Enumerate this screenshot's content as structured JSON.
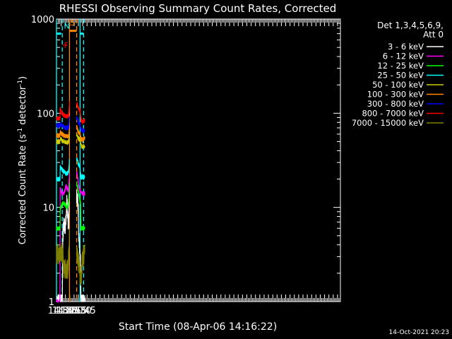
{
  "chart_data": {
    "type": "line",
    "title": "RHESSI Observing Summary Count Rates, Corrected",
    "xlabel": "Start Time (08-Apr-06 14:16:22)",
    "ylabel": "Corrected Count Rate (s",
    "ylabel_sup": "-1",
    "ylabel_tail": " detector",
    "ylabel_tail_sup": "-1",
    "ylabel_close": ")",
    "yscale": "log",
    "ylim": [
      1,
      1000
    ],
    "xlim_min": [
      14,
      1000
    ],
    "x_ticks": [
      {
        "min": 30,
        "label": "14:30"
      },
      {
        "min": 45,
        "label": "14:45"
      },
      {
        "min": 60,
        "label": "15:00"
      },
      {
        "min": 75,
        "label": "15:15"
      },
      {
        "min": 90,
        "label": "15:30"
      },
      {
        "min": 105,
        "label": "15:45"
      }
    ],
    "y_ticks": [
      {
        "value": 1,
        "label": "1"
      },
      {
        "value": 10,
        "label": "10"
      },
      {
        "value": 100,
        "label": "100"
      },
      {
        "value": 1000,
        "label": "1000"
      }
    ],
    "legend_header": [
      "Det 1,3,4,5,6,9,",
      "Att 0"
    ],
    "legend_position": "right",
    "timestamp": "14-Oct-2021 20:23",
    "gaps": [
      [
        59,
        84
      ]
    ],
    "series": [
      {
        "name": "3 - 6 keV",
        "color": "#ffffff",
        "points": [
          [
            14,
            1
          ],
          [
            34,
            1
          ],
          [
            36,
            5
          ],
          [
            40,
            7
          ],
          [
            44,
            6
          ],
          [
            48,
            9
          ],
          [
            50,
            12
          ],
          [
            52,
            10
          ],
          [
            54,
            7
          ],
          [
            56,
            6
          ],
          [
            58,
            12
          ],
          [
            59,
            13
          ],
          [
            84,
            13
          ],
          [
            87,
            12
          ],
          [
            90,
            9
          ],
          [
            91,
            5
          ],
          [
            95,
            3.5
          ],
          [
            98,
            2.5
          ],
          [
            99,
            1
          ],
          [
            105,
            1
          ],
          [
            112,
            1
          ]
        ]
      },
      {
        "name": "6 - 12 keV",
        "color": "#ff00ff",
        "points": [
          [
            14,
            1
          ],
          [
            26,
            1
          ],
          [
            27,
            16
          ],
          [
            30,
            15
          ],
          [
            34,
            14
          ],
          [
            38,
            14
          ],
          [
            42,
            15
          ],
          [
            48,
            17
          ],
          [
            54,
            15
          ],
          [
            56,
            16
          ],
          [
            58,
            20
          ],
          [
            59,
            24
          ],
          [
            84,
            24
          ],
          [
            88,
            20
          ],
          [
            91,
            17
          ],
          [
            95,
            15
          ],
          [
            99,
            15
          ],
          [
            104,
            14
          ],
          [
            112,
            14
          ]
        ]
      },
      {
        "name": "12 - 25 keV",
        "color": "#00ff00",
        "points": [
          [
            14,
            6
          ],
          [
            26,
            6
          ],
          [
            27,
            10
          ],
          [
            30,
            10
          ],
          [
            34,
            11
          ],
          [
            40,
            11
          ],
          [
            46,
            10.5
          ],
          [
            52,
            10
          ],
          [
            56,
            11
          ],
          [
            58,
            14
          ],
          [
            59,
            18
          ],
          [
            84,
            18
          ],
          [
            88,
            16
          ],
          [
            91,
            14
          ],
          [
            95,
            12
          ],
          [
            98,
            11
          ],
          [
            99,
            6
          ],
          [
            112,
            6
          ]
        ]
      },
      {
        "name": "25 - 50 keV",
        "color": "#00ffff",
        "points": [
          [
            14,
            20
          ],
          [
            26,
            20
          ],
          [
            27,
            27
          ],
          [
            30,
            26
          ],
          [
            34,
            25
          ],
          [
            40,
            24
          ],
          [
            46,
            23
          ],
          [
            52,
            23
          ],
          [
            56,
            24
          ],
          [
            58,
            28
          ],
          [
            59,
            33
          ],
          [
            84,
            33
          ],
          [
            88,
            30
          ],
          [
            92,
            28
          ],
          [
            96,
            27
          ],
          [
            99,
            21
          ],
          [
            104,
            21
          ],
          [
            112,
            21
          ]
        ]
      },
      {
        "name": "50 - 100 keV",
        "color": "#cccc00",
        "points": [
          [
            14,
            50
          ],
          [
            26,
            50
          ],
          [
            27,
            55
          ],
          [
            30,
            53
          ],
          [
            34,
            51
          ],
          [
            40,
            50
          ],
          [
            46,
            49
          ],
          [
            52,
            49
          ],
          [
            56,
            50
          ],
          [
            58,
            54
          ],
          [
            59,
            60
          ],
          [
            84,
            60
          ],
          [
            88,
            56
          ],
          [
            92,
            53
          ],
          [
            96,
            52
          ],
          [
            99,
            46
          ],
          [
            104,
            44
          ],
          [
            112,
            45
          ]
        ]
      },
      {
        "name": "100 - 300 keV",
        "color": "#ff8800",
        "points": [
          [
            14,
            58
          ],
          [
            26,
            58
          ],
          [
            27,
            63
          ],
          [
            30,
            61
          ],
          [
            34,
            60
          ],
          [
            40,
            58
          ],
          [
            46,
            57
          ],
          [
            52,
            57
          ],
          [
            56,
            58
          ],
          [
            58,
            64
          ],
          [
            59,
            74
          ],
          [
            84,
            72
          ],
          [
            88,
            66
          ],
          [
            92,
            62
          ],
          [
            96,
            60
          ],
          [
            99,
            54
          ],
          [
            104,
            52
          ],
          [
            112,
            55
          ]
        ]
      },
      {
        "name": "300 - 800 keV",
        "color": "#0000ff",
        "points": [
          [
            14,
            74
          ],
          [
            26,
            74
          ],
          [
            27,
            78
          ],
          [
            30,
            76
          ],
          [
            34,
            74
          ],
          [
            40,
            71
          ],
          [
            46,
            70
          ],
          [
            52,
            70
          ],
          [
            56,
            72
          ],
          [
            58,
            80
          ],
          [
            59,
            92
          ],
          [
            84,
            90
          ],
          [
            88,
            84
          ],
          [
            92,
            78
          ],
          [
            96,
            76
          ],
          [
            99,
            68
          ],
          [
            104,
            64
          ],
          [
            112,
            66
          ]
        ]
      },
      {
        "name": "800 - 7000 keV",
        "color": "#ff0000",
        "points": [
          [
            14,
            88
          ],
          [
            26,
            88
          ],
          [
            27,
            110
          ],
          [
            30,
            106
          ],
          [
            34,
            100
          ],
          [
            40,
            95
          ],
          [
            46,
            93
          ],
          [
            52,
            92
          ],
          [
            56,
            95
          ],
          [
            58,
            110
          ],
          [
            59,
            130
          ],
          [
            84,
            128
          ],
          [
            88,
            118
          ],
          [
            92,
            112
          ],
          [
            96,
            105
          ],
          [
            99,
            86
          ],
          [
            104,
            80
          ],
          [
            112,
            85
          ]
        ]
      },
      {
        "name": "7000 - 15000 keV",
        "color": "#808000",
        "points": [
          [
            14,
            3.2
          ],
          [
            26,
            3.2
          ],
          [
            30,
            3.5
          ],
          [
            36,
            3.2
          ],
          [
            38,
            2.3
          ],
          [
            44,
            2.2
          ],
          [
            50,
            2.2
          ],
          [
            54,
            2.2
          ],
          [
            56,
            3
          ],
          [
            59,
            5
          ],
          [
            84,
            3.2
          ],
          [
            88,
            3.0
          ],
          [
            92,
            2.4
          ],
          [
            96,
            2.0
          ],
          [
            99,
            1.6
          ],
          [
            104,
            2.8
          ],
          [
            112,
            3.2
          ]
        ]
      }
    ],
    "vertical_lines": [
      {
        "min": 14,
        "color": "#00ffff",
        "style": "solid"
      },
      {
        "min": 34,
        "color": "#00ffff",
        "style": "dashed"
      },
      {
        "min": 96,
        "color": "#00ffff",
        "style": "solid"
      },
      {
        "min": 108,
        "color": "#00ffff",
        "style": "dashed"
      },
      {
        "min": 59,
        "color": "#ff8800",
        "style": "solid"
      },
      {
        "min": 84,
        "color": "#ff8800",
        "style": "dashed"
      }
    ],
    "flag_bars": [
      {
        "min_start": 14,
        "min_end": 30,
        "value": 700,
        "color": "#00ffff"
      },
      {
        "min_start": 96,
        "min_end": 108,
        "value": 700,
        "color": "#00ffff"
      },
      {
        "min_start": 59,
        "min_end": 84,
        "value": 750,
        "color": "#ff8800"
      },
      {
        "min_start": 37,
        "min_end": 39,
        "value": 530,
        "color": "#ff0000"
      },
      {
        "min_start": 44,
        "min_end": 47,
        "value": 530,
        "color": "#ff0000"
      }
    ],
    "markers": [
      {
        "text": "N",
        "min": 35,
        "value": 850,
        "color": "#00ffff"
      },
      {
        "text": "F",
        "min": 35,
        "value": 530,
        "color": "#ff0000"
      },
      {
        "text": "S",
        "min": 57.5,
        "value": 920,
        "color": "#ff8800"
      }
    ]
  }
}
